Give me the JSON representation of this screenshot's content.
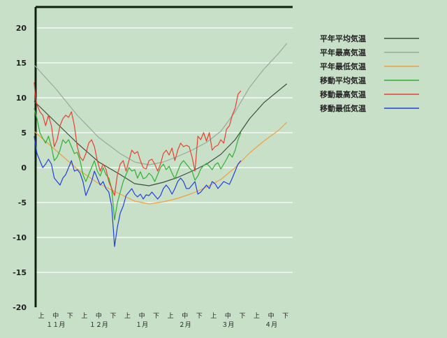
{
  "colors": {
    "background": "#c8dfc8",
    "grid": "#ffffff",
    "axis": "#102010"
  },
  "chart_data": {
    "type": "line",
    "title": "",
    "xlabel": "",
    "ylabel": "",
    "ylim": [
      -20,
      23
    ],
    "yticks": [
      20,
      15,
      10,
      5,
      0,
      -5,
      -10,
      -15,
      -20
    ],
    "ytick_labels": [
      "20",
      "15",
      "10",
      "5",
      "0",
      "-5",
      "-10",
      "-15",
      "-20"
    ],
    "x_unit": "day index from early November (0-180)",
    "xlim": [
      0,
      180
    ],
    "xtick_positions": [
      5,
      15,
      25,
      35,
      45,
      55,
      65,
      75,
      85,
      95,
      105,
      115,
      125,
      135,
      145,
      155,
      165,
      175
    ],
    "xtick_labels": [
      "上",
      "中",
      "下",
      "上",
      "中",
      "下",
      "上",
      "中",
      "下",
      "上",
      "中",
      "下",
      "上",
      "中",
      "下",
      "上",
      "中",
      "下"
    ],
    "month_positions": [
      15,
      45,
      75,
      105,
      135,
      165
    ],
    "month_labels": [
      "１１月",
      "１２月",
      "１月",
      "２月",
      "３月",
      "４月"
    ],
    "grid": true,
    "legend_position": "top-right",
    "series": [
      {
        "name": "平年平均気温",
        "color": "#3d4f3d",
        "points": [
          [
            0,
            9.5
          ],
          [
            15,
            6.5
          ],
          [
            30,
            3.5
          ],
          [
            45,
            0.8
          ],
          [
            60,
            -1
          ],
          [
            70,
            -2.3
          ],
          [
            80,
            -2.6
          ],
          [
            90,
            -2.1
          ],
          [
            100,
            -1.4
          ],
          [
            110,
            -0.5
          ],
          [
            120,
            0.5
          ],
          [
            130,
            1.9
          ],
          [
            140,
            4
          ],
          [
            150,
            7
          ],
          [
            160,
            9.3
          ],
          [
            170,
            11
          ],
          [
            176,
            12
          ]
        ]
      },
      {
        "name": "平年最高気温",
        "color": "#99aa99",
        "points": [
          [
            0,
            14.7
          ],
          [
            15,
            11.3
          ],
          [
            30,
            7.5
          ],
          [
            45,
            4.3
          ],
          [
            60,
            2
          ],
          [
            70,
            0.8
          ],
          [
            80,
            0.4
          ],
          [
            90,
            0.8
          ],
          [
            100,
            1.6
          ],
          [
            110,
            2.5
          ],
          [
            120,
            3.6
          ],
          [
            130,
            5.2
          ],
          [
            140,
            8
          ],
          [
            150,
            11.5
          ],
          [
            160,
            14.1
          ],
          [
            170,
            16.3
          ],
          [
            176,
            17.8
          ]
        ]
      },
      {
        "name": "平年最低気温",
        "color": "#f0a040",
        "points": [
          [
            0,
            5.2
          ],
          [
            15,
            2.5
          ],
          [
            30,
            -0.2
          ],
          [
            45,
            -2.3
          ],
          [
            60,
            -3.8
          ],
          [
            70,
            -4.8
          ],
          [
            80,
            -5.2
          ],
          [
            90,
            -4.9
          ],
          [
            100,
            -4.4
          ],
          [
            110,
            -3.7
          ],
          [
            120,
            -2.8
          ],
          [
            130,
            -1.7
          ],
          [
            140,
            0
          ],
          [
            150,
            2.1
          ],
          [
            160,
            3.8
          ],
          [
            170,
            5.3
          ],
          [
            176,
            6.5
          ]
        ]
      },
      {
        "name": "移動平均気温",
        "color": "#30b030",
        "points": [
          [
            0,
            8.5
          ],
          [
            2,
            7
          ],
          [
            4,
            5
          ],
          [
            6,
            4.2
          ],
          [
            8,
            3.5
          ],
          [
            10,
            4.5
          ],
          [
            12,
            3
          ],
          [
            14,
            1
          ],
          [
            16,
            1.5
          ],
          [
            18,
            2.5
          ],
          [
            20,
            4
          ],
          [
            22,
            3.5
          ],
          [
            24,
            4
          ],
          [
            26,
            3
          ],
          [
            28,
            2
          ],
          [
            30,
            2.2
          ],
          [
            32,
            1
          ],
          [
            34,
            -1
          ],
          [
            36,
            -2
          ],
          [
            38,
            -1
          ],
          [
            40,
            0
          ],
          [
            42,
            1
          ],
          [
            44,
            -0.5
          ],
          [
            46,
            -1.2
          ],
          [
            48,
            0
          ],
          [
            50,
            -1
          ],
          [
            52,
            -1.5
          ],
          [
            54,
            -3
          ],
          [
            56,
            -7.5
          ],
          [
            58,
            -5
          ],
          [
            60,
            -3.5
          ],
          [
            62,
            -2
          ],
          [
            64,
            -1
          ],
          [
            66,
            0
          ],
          [
            68,
            -0.5
          ],
          [
            70,
            -0.3
          ],
          [
            72,
            -1.5
          ],
          [
            74,
            -0.6
          ],
          [
            76,
            -1.6
          ],
          [
            78,
            -1.4
          ],
          [
            80,
            -0.8
          ],
          [
            82,
            -1.2
          ],
          [
            84,
            -2
          ],
          [
            86,
            -1
          ],
          [
            88,
            0
          ],
          [
            90,
            0.5
          ],
          [
            92,
            -0.3
          ],
          [
            94,
            0.2
          ],
          [
            96,
            -0.8
          ],
          [
            98,
            -1.6
          ],
          [
            100,
            -0.5
          ],
          [
            102,
            0.5
          ],
          [
            104,
            1
          ],
          [
            106,
            0.5
          ],
          [
            108,
            0
          ],
          [
            110,
            -0.5
          ],
          [
            112,
            -1.8
          ],
          [
            114,
            -1.2
          ],
          [
            116,
            -0.2
          ],
          [
            118,
            0.3
          ],
          [
            120,
            0.6
          ],
          [
            122,
            0.2
          ],
          [
            124,
            -0.3
          ],
          [
            126,
            0.4
          ],
          [
            128,
            0.7
          ],
          [
            130,
            -0.2
          ],
          [
            132,
            0.5
          ],
          [
            134,
            1.2
          ],
          [
            136,
            2
          ],
          [
            138,
            1.5
          ],
          [
            140,
            2.5
          ],
          [
            142,
            4
          ],
          [
            144,
            5
          ]
        ]
      },
      {
        "name": "移動最高気温",
        "color": "#e84030",
        "points": [
          [
            0,
            12.2
          ],
          [
            1,
            10
          ],
          [
            2,
            9
          ],
          [
            4,
            8
          ],
          [
            6,
            7.5
          ],
          [
            8,
            6
          ],
          [
            10,
            7.5
          ],
          [
            12,
            6
          ],
          [
            14,
            3
          ],
          [
            16,
            4
          ],
          [
            18,
            6
          ],
          [
            20,
            7
          ],
          [
            22,
            7.5
          ],
          [
            24,
            7.2
          ],
          [
            26,
            8
          ],
          [
            28,
            6
          ],
          [
            30,
            3
          ],
          [
            32,
            1.5
          ],
          [
            34,
            1
          ],
          [
            36,
            2
          ],
          [
            38,
            3.5
          ],
          [
            40,
            4
          ],
          [
            42,
            3
          ],
          [
            44,
            1
          ],
          [
            46,
            -0.5
          ],
          [
            48,
            0.5
          ],
          [
            50,
            -0.2
          ],
          [
            52,
            -2
          ],
          [
            54,
            -3
          ],
          [
            56,
            -4
          ],
          [
            58,
            -1
          ],
          [
            60,
            0.5
          ],
          [
            62,
            1
          ],
          [
            64,
            -0.5
          ],
          [
            66,
            1
          ],
          [
            68,
            2.5
          ],
          [
            70,
            2
          ],
          [
            72,
            2.3
          ],
          [
            74,
            1
          ],
          [
            76,
            0
          ],
          [
            78,
            -0.2
          ],
          [
            80,
            1
          ],
          [
            82,
            1.2
          ],
          [
            84,
            0.5
          ],
          [
            86,
            -0.5
          ],
          [
            88,
            0.5
          ],
          [
            90,
            2
          ],
          [
            92,
            2.5
          ],
          [
            94,
            1.8
          ],
          [
            96,
            2.8
          ],
          [
            98,
            1
          ],
          [
            100,
            2.5
          ],
          [
            102,
            3.5
          ],
          [
            104,
            3
          ],
          [
            106,
            3.2
          ],
          [
            108,
            3
          ],
          [
            110,
            1.5
          ],
          [
            112,
            -0.5
          ],
          [
            114,
            4.5
          ],
          [
            116,
            4
          ],
          [
            118,
            5
          ],
          [
            120,
            3.8
          ],
          [
            122,
            5
          ],
          [
            124,
            2.5
          ],
          [
            126,
            3
          ],
          [
            128,
            3.2
          ],
          [
            130,
            4
          ],
          [
            132,
            3.5
          ],
          [
            134,
            5.5
          ],
          [
            136,
            6
          ],
          [
            138,
            7.5
          ],
          [
            140,
            8.5
          ],
          [
            142,
            10.5
          ],
          [
            144,
            11
          ]
        ]
      },
      {
        "name": "移動最低気温",
        "color": "#2040e0",
        "points": [
          [
            0,
            4.5
          ],
          [
            2,
            2
          ],
          [
            4,
            1
          ],
          [
            6,
            0
          ],
          [
            8,
            0.5
          ],
          [
            10,
            1.2
          ],
          [
            12,
            0.5
          ],
          [
            14,
            -1.5
          ],
          [
            16,
            -2
          ],
          [
            18,
            -2.5
          ],
          [
            20,
            -1.5
          ],
          [
            22,
            -1
          ],
          [
            24,
            0
          ],
          [
            26,
            1
          ],
          [
            28,
            -0.5
          ],
          [
            30,
            -0.3
          ],
          [
            32,
            -0.8
          ],
          [
            34,
            -2
          ],
          [
            36,
            -4
          ],
          [
            38,
            -3
          ],
          [
            40,
            -2
          ],
          [
            42,
            -0.5
          ],
          [
            44,
            -1.5
          ],
          [
            46,
            -2.5
          ],
          [
            48,
            -2
          ],
          [
            50,
            -3
          ],
          [
            52,
            -3.5
          ],
          [
            54,
            -5.5
          ],
          [
            56,
            -11.3
          ],
          [
            58,
            -8.5
          ],
          [
            60,
            -6.5
          ],
          [
            62,
            -5.5
          ],
          [
            64,
            -4
          ],
          [
            66,
            -3.5
          ],
          [
            68,
            -3
          ],
          [
            70,
            -3.8
          ],
          [
            72,
            -4.2
          ],
          [
            74,
            -3.8
          ],
          [
            76,
            -4.5
          ],
          [
            78,
            -3.9
          ],
          [
            80,
            -4
          ],
          [
            82,
            -3.5
          ],
          [
            84,
            -4
          ],
          [
            86,
            -4.5
          ],
          [
            88,
            -4
          ],
          [
            90,
            -3
          ],
          [
            92,
            -2.5
          ],
          [
            94,
            -3
          ],
          [
            96,
            -3.8
          ],
          [
            98,
            -3
          ],
          [
            100,
            -2
          ],
          [
            102,
            -1.5
          ],
          [
            104,
            -2
          ],
          [
            106,
            -3
          ],
          [
            108,
            -3
          ],
          [
            110,
            -2.5
          ],
          [
            112,
            -2
          ],
          [
            114,
            -3.8
          ],
          [
            116,
            -3.5
          ],
          [
            118,
            -3
          ],
          [
            120,
            -2.5
          ],
          [
            122,
            -3
          ],
          [
            124,
            -2
          ],
          [
            126,
            -2.3
          ],
          [
            128,
            -3
          ],
          [
            130,
            -2.5
          ],
          [
            132,
            -2
          ],
          [
            134,
            -2.2
          ],
          [
            136,
            -2.4
          ],
          [
            138,
            -1.5
          ],
          [
            140,
            -0.5
          ],
          [
            142,
            0.5
          ],
          [
            144,
            1
          ]
        ]
      }
    ]
  }
}
